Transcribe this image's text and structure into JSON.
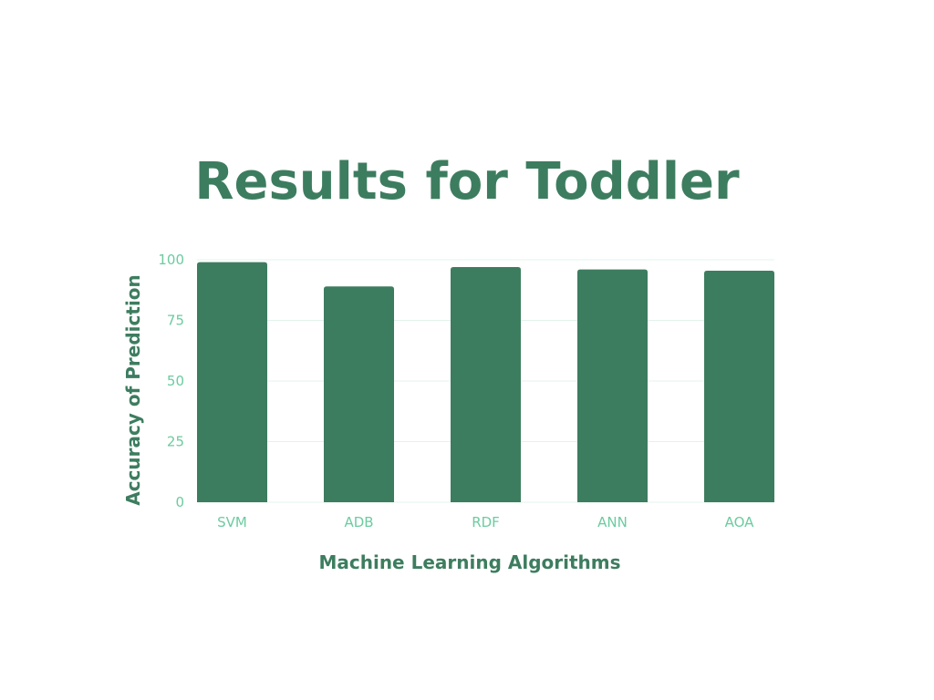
{
  "chart_data": {
    "type": "bar",
    "title": "Results for Toddler",
    "xlabel": "Machine Learning Algorithms",
    "ylabel": "Accuracy of Prediction",
    "categories": [
      "SVM",
      "ADB",
      "RDF",
      "ANN",
      "AOA"
    ],
    "values": [
      99,
      89,
      97,
      96,
      95.5
    ],
    "ylim": [
      0,
      100
    ],
    "yticks": [
      0,
      25,
      50,
      75,
      100
    ],
    "grid": true,
    "legend": "none",
    "colors": {
      "bar": "#3d7d5f",
      "title": "#3d7d5f",
      "tick_label": "#6ccba0",
      "gridline": "#e3f3ec"
    }
  }
}
